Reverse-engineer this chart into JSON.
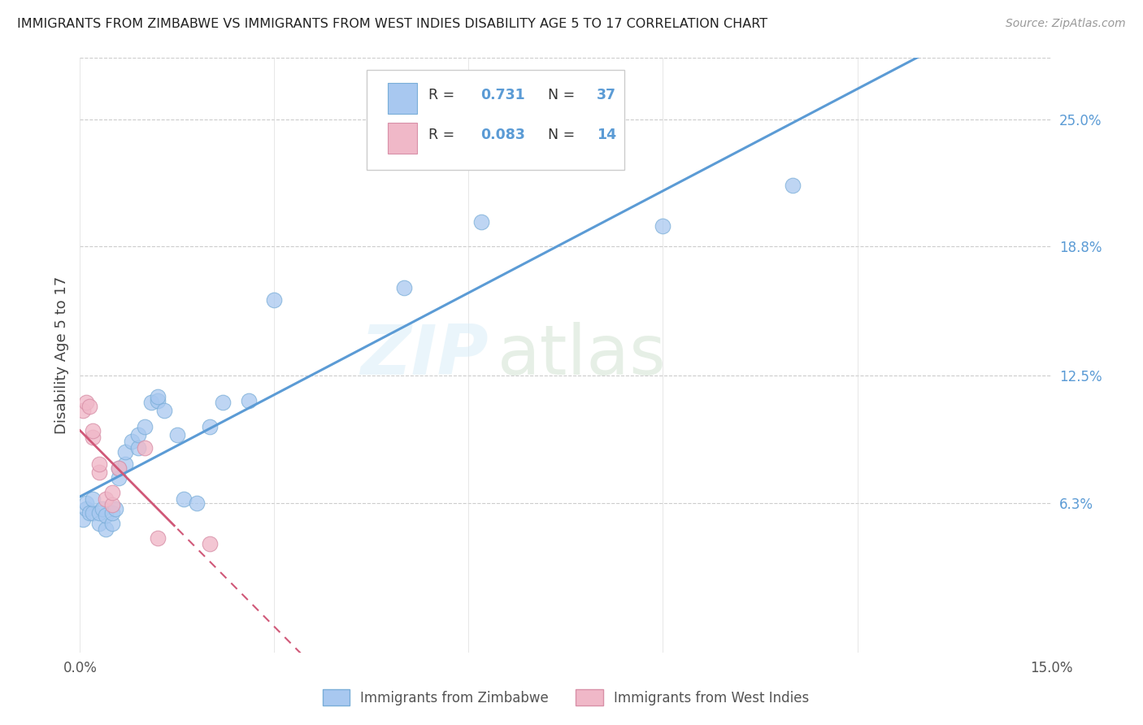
{
  "title": "IMMIGRANTS FROM ZIMBABWE VS IMMIGRANTS FROM WEST INDIES DISABILITY AGE 5 TO 17 CORRELATION CHART",
  "source": "Source: ZipAtlas.com",
  "ylabel": "Disability Age 5 to 17",
  "x_min": 0.0,
  "x_max": 0.15,
  "y_min": -0.01,
  "y_max": 0.28,
  "x_tick_positions": [
    0.0,
    0.03,
    0.06,
    0.09,
    0.12,
    0.15
  ],
  "x_tick_labels": [
    "0.0%",
    "",
    "",
    "",
    "",
    "15.0%"
  ],
  "y_tick_vals_right": [
    0.063,
    0.125,
    0.188,
    0.25
  ],
  "y_tick_labels_right": [
    "6.3%",
    "12.5%",
    "18.8%",
    "25.0%"
  ],
  "R_zimbabwe": 0.731,
  "N_zimbabwe": 37,
  "R_west_indies": 0.083,
  "N_west_indies": 14,
  "color_zimbabwe": "#a8c8f0",
  "color_zimbabwe_edge": "#7aaed8",
  "color_zimbabwe_line": "#5b9bd5",
  "color_west_indies": "#f0b8c8",
  "color_west_indies_edge": "#d890a8",
  "color_west_indies_line": "#d05878",
  "zimbabwe_x": [
    0.0005,
    0.001,
    0.001,
    0.0015,
    0.002,
    0.002,
    0.003,
    0.003,
    0.0035,
    0.004,
    0.004,
    0.005,
    0.005,
    0.0055,
    0.006,
    0.006,
    0.007,
    0.007,
    0.008,
    0.009,
    0.009,
    0.01,
    0.011,
    0.012,
    0.012,
    0.013,
    0.015,
    0.016,
    0.018,
    0.02,
    0.022,
    0.026,
    0.03,
    0.05,
    0.062,
    0.09,
    0.11
  ],
  "zimbabwe_y": [
    0.055,
    0.06,
    0.063,
    0.058,
    0.058,
    0.065,
    0.053,
    0.058,
    0.06,
    0.05,
    0.057,
    0.053,
    0.058,
    0.06,
    0.075,
    0.08,
    0.082,
    0.088,
    0.093,
    0.09,
    0.096,
    0.1,
    0.112,
    0.113,
    0.115,
    0.108,
    0.096,
    0.065,
    0.063,
    0.1,
    0.112,
    0.113,
    0.162,
    0.168,
    0.2,
    0.198,
    0.218
  ],
  "west_indies_x": [
    0.0005,
    0.001,
    0.0015,
    0.002,
    0.002,
    0.003,
    0.003,
    0.004,
    0.005,
    0.005,
    0.006,
    0.01,
    0.012,
    0.02
  ],
  "west_indies_y": [
    0.108,
    0.112,
    0.11,
    0.095,
    0.098,
    0.078,
    0.082,
    0.065,
    0.062,
    0.068,
    0.08,
    0.09,
    0.046,
    0.043
  ],
  "watermark_zip": "ZIP",
  "watermark_atlas": "atlas",
  "legend_label_1": "Immigrants from Zimbabwe",
  "legend_label_2": "Immigrants from West Indies"
}
